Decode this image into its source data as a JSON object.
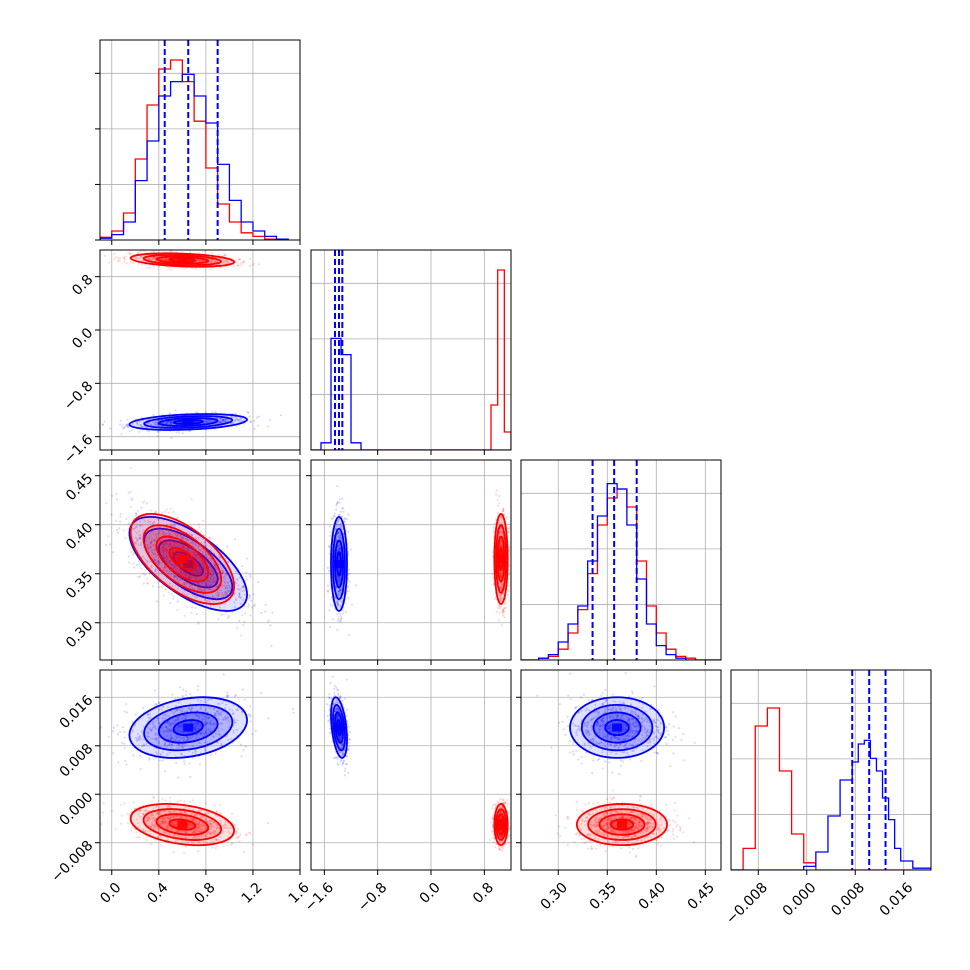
{
  "chart_data": {
    "type": "corner",
    "colors": {
      "series_a": "#0000ff",
      "series_b": "#ff0000"
    },
    "grid": true,
    "parameters": [
      {
        "range": [
          -0.1,
          1.6
        ],
        "ticks": [
          0.0,
          0.4,
          0.8,
          1.2,
          1.6
        ],
        "tick_labels": [
          "0.0",
          "0.4",
          "0.8",
          "1.2",
          "1.6"
        ]
      },
      {
        "range": [
          -1.8,
          1.2
        ],
        "ticks": [
          -1.6,
          -0.8,
          0.0,
          0.8
        ],
        "tick_labels": [
          "−1.6",
          "−0.8",
          "0.0",
          "0.8"
        ]
      },
      {
        "range": [
          0.262,
          0.466
        ],
        "ticks": [
          0.3,
          0.35,
          0.4,
          0.45
        ],
        "tick_labels": [
          "0.30",
          "0.35",
          "0.40",
          "0.45"
        ]
      },
      {
        "range": [
          -0.0125,
          0.0205
        ],
        "ticks": [
          -0.008,
          0.0,
          0.008,
          0.016
        ],
        "tick_labels": [
          "−0.008",
          "0.000",
          "0.008",
          "0.016"
        ]
      }
    ],
    "series": [
      {
        "color": "#0000ff",
        "mean": [
          0.65,
          -1.38,
          0.36,
          0.011
        ],
        "std": [
          0.25,
          0.06,
          0.024,
          0.0025
        ],
        "corr01": 0.3,
        "corr02": -0.65,
        "corr03": 0.25,
        "corr13": -0.4,
        "corr23": 0.0,
        "quantiles": [
          [
            0.45,
            0.65,
            0.9
          ],
          [
            -1.44,
            -1.38,
            -1.33
          ],
          [
            0.335,
            0.357,
            0.38
          ],
          [
            0.0075,
            0.0103,
            0.013
          ]
        ]
      },
      {
        "color": "#ff0000",
        "mean": [
          0.6,
          1.05,
          0.365,
          -0.005
        ],
        "std": [
          0.22,
          0.05,
          0.023,
          0.0017
        ],
        "corr01": -0.3,
        "corr02": -0.6,
        "corr03": -0.3,
        "corr13": 0.0,
        "corr23": 0.0
      }
    ],
    "histograms": [
      {
        "param": 0,
        "bins": [
          -0.1,
          0.0,
          0.1,
          0.2,
          0.3,
          0.4,
          0.5,
          0.6,
          0.7,
          0.8,
          0.9,
          1.0,
          1.1,
          1.2,
          1.3,
          1.4,
          1.5
        ],
        "blue": [
          0.01,
          0.03,
          0.1,
          0.33,
          0.55,
          0.8,
          0.88,
          0.92,
          0.8,
          0.65,
          0.42,
          0.22,
          0.1,
          0.05,
          0.02,
          0.005
        ],
        "red": [
          0.015,
          0.05,
          0.15,
          0.45,
          0.75,
          0.95,
          1.0,
          0.88,
          0.66,
          0.4,
          0.2,
          0.1,
          0.04,
          0.02,
          0.005,
          0.0
        ]
      },
      {
        "param": 1,
        "bins": [
          -1.8,
          -1.65,
          -1.5,
          -1.35,
          -1.2,
          -1.05,
          -0.9,
          -0.6,
          0.0,
          0.6,
          0.9,
          1.0,
          1.1,
          1.2
        ],
        "blue": [
          0.0,
          0.04,
          0.62,
          0.53,
          0.04,
          0.0,
          0.0,
          0.0,
          0.0,
          0.0,
          0.0,
          0.0,
          0.0
        ],
        "red": [
          0.0,
          0.0,
          0.0,
          0.0,
          0.0,
          0.0,
          0.0,
          0.0,
          0.0,
          0.0,
          0.25,
          1.0,
          0.1
        ]
      },
      {
        "param": 2,
        "bins": [
          0.262,
          0.27,
          0.28,
          0.29,
          0.3,
          0.31,
          0.32,
          0.33,
          0.34,
          0.35,
          0.36,
          0.37,
          0.38,
          0.39,
          0.4,
          0.41,
          0.42,
          0.43,
          0.44,
          0.45,
          0.466
        ],
        "blue": [
          0.0,
          0.0,
          0.01,
          0.03,
          0.1,
          0.2,
          0.3,
          0.55,
          0.8,
          0.98,
          0.95,
          0.75,
          0.45,
          0.2,
          0.08,
          0.03,
          0.01,
          0.0,
          0.0,
          0.0
        ],
        "red": [
          0.0,
          0.0,
          0.01,
          0.02,
          0.06,
          0.15,
          0.28,
          0.48,
          0.75,
          0.9,
          0.95,
          0.85,
          0.55,
          0.3,
          0.15,
          0.06,
          0.02,
          0.01,
          0.0,
          0.0
        ]
      },
      {
        "param": 3,
        "bins": [
          -0.0125,
          -0.0105,
          -0.0085,
          -0.0065,
          -0.0045,
          -0.0025,
          -0.0005,
          0.0015,
          0.0035,
          0.0055,
          0.0075,
          0.0085,
          0.0095,
          0.0105,
          0.0115,
          0.0125,
          0.0135,
          0.0145,
          0.0155,
          0.0175,
          0.0205
        ],
        "blue": [
          0.0,
          0.0,
          0.0,
          0.0,
          0.0,
          0.0,
          0.02,
          0.1,
          0.3,
          0.5,
          0.6,
          0.7,
          0.72,
          0.62,
          0.55,
          0.4,
          0.28,
          0.12,
          0.05,
          0.01
        ],
        "red": [
          0.0,
          0.12,
          0.8,
          0.9,
          0.55,
          0.2,
          0.04,
          0.0,
          0.0,
          0.0,
          0.0,
          0.0,
          0.0,
          0.0,
          0.0,
          0.0,
          0.0,
          0.0,
          0.0,
          0.0
        ]
      }
    ]
  }
}
